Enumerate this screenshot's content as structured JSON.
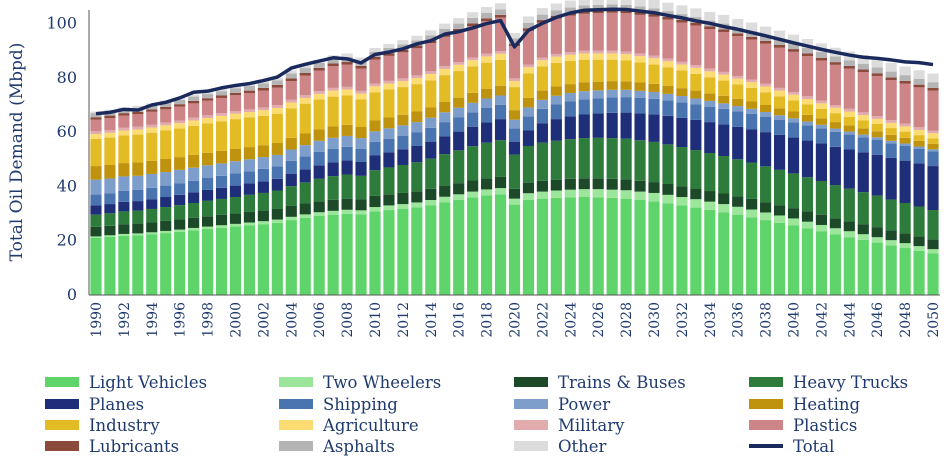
{
  "chart_data": {
    "type": "bar",
    "stacked": true,
    "ylabel": "Total Oil Demand (Mbpd)",
    "xlabel": "",
    "ylim": [
      0,
      105
    ],
    "yticks": [
      0,
      20,
      40,
      60,
      80,
      100
    ],
    "x": [
      1990,
      1991,
      1992,
      1993,
      1994,
      1995,
      1996,
      1997,
      1998,
      1999,
      2000,
      2001,
      2002,
      2003,
      2004,
      2005,
      2006,
      2007,
      2008,
      2009,
      2010,
      2011,
      2012,
      2013,
      2014,
      2015,
      2016,
      2017,
      2018,
      2019,
      2020,
      2021,
      2022,
      2023,
      2024,
      2025,
      2026,
      2027,
      2028,
      2029,
      2030,
      2031,
      2032,
      2033,
      2034,
      2035,
      2036,
      2037,
      2038,
      2039,
      2040,
      2041,
      2042,
      2043,
      2044,
      2045,
      2046,
      2047,
      2048,
      2049,
      2050
    ],
    "xtick_labels": [
      "1990",
      "1992",
      "1994",
      "1996",
      "1998",
      "2000",
      "2002",
      "2004",
      "2006",
      "2008",
      "2010",
      "2012",
      "2014",
      "2016",
      "2018",
      "2020",
      "2022",
      "2024",
      "2026",
      "2028",
      "2030",
      "2032",
      "2034",
      "2036",
      "2038",
      "2040",
      "2042",
      "2044",
      "2046",
      "2048",
      "2050"
    ],
    "series": [
      {
        "name": "Light Vehicles",
        "color": "#5fd46a",
        "values": [
          21.0,
          21.4,
          21.8,
          22.0,
          22.4,
          22.8,
          23.3,
          23.8,
          24.3,
          24.7,
          25.2,
          25.6,
          26.1,
          26.6,
          27.6,
          28.4,
          29.1,
          29.6,
          29.9,
          29.7,
          30.8,
          31.3,
          31.8,
          32.3,
          33.1,
          34.2,
          35.1,
          36.0,
          36.7,
          37.1,
          33.3,
          35.0,
          35.5,
          35.8,
          36.0,
          36.1,
          36.0,
          35.8,
          35.5,
          35.0,
          34.5,
          33.8,
          33.0,
          32.2,
          31.4,
          30.5,
          29.6,
          28.6,
          27.6,
          26.6,
          25.6,
          24.5,
          23.4,
          22.3,
          21.3,
          20.3,
          19.3,
          18.3,
          17.3,
          16.3,
          15.3
        ]
      },
      {
        "name": "Two Wheelers",
        "color": "#9be69a",
        "values": [
          0.6,
          0.6,
          0.7,
          0.7,
          0.7,
          0.8,
          0.8,
          0.9,
          0.9,
          1.0,
          1.0,
          1.1,
          1.1,
          1.2,
          1.2,
          1.3,
          1.4,
          1.4,
          1.5,
          1.5,
          1.6,
          1.7,
          1.7,
          1.8,
          1.9,
          2.0,
          2.0,
          2.1,
          2.2,
          2.3,
          2.2,
          2.5,
          2.6,
          2.7,
          2.8,
          2.9,
          3.0,
          3.0,
          3.1,
          3.1,
          3.1,
          3.1,
          3.1,
          3.1,
          3.0,
          3.0,
          2.9,
          2.9,
          2.8,
          2.7,
          2.6,
          2.5,
          2.4,
          2.3,
          2.2,
          2.1,
          2.0,
          1.9,
          1.8,
          1.7,
          1.6
        ]
      },
      {
        "name": "Trains & Buses",
        "color": "#1c4a28",
        "values": [
          3.5,
          3.5,
          3.6,
          3.6,
          3.6,
          3.7,
          3.7,
          3.7,
          3.8,
          3.8,
          3.8,
          3.9,
          3.9,
          3.9,
          4.0,
          4.0,
          4.0,
          4.1,
          4.1,
          4.0,
          4.1,
          4.1,
          4.1,
          4.1,
          4.1,
          4.1,
          4.1,
          4.1,
          4.1,
          4.1,
          3.6,
          3.9,
          4.0,
          4.0,
          4.0,
          4.0,
          4.0,
          4.0,
          4.0,
          4.0,
          4.0,
          4.0,
          4.0,
          3.9,
          3.9,
          3.9,
          3.9,
          3.9,
          3.8,
          3.8,
          3.8,
          3.8,
          3.8,
          3.7,
          3.7,
          3.7,
          3.7,
          3.6,
          3.6,
          3.6,
          3.6
        ]
      },
      {
        "name": "Heavy Trucks",
        "color": "#2e7c3c",
        "values": [
          4.5,
          4.6,
          4.7,
          4.8,
          5.0,
          5.1,
          5.3,
          5.5,
          5.7,
          5.9,
          6.1,
          6.3,
          6.5,
          6.8,
          7.3,
          7.8,
          8.3,
          8.7,
          8.9,
          8.7,
          9.5,
          9.9,
          10.3,
          10.7,
          11.1,
          11.6,
          12.1,
          12.6,
          13.1,
          13.5,
          12.6,
          13.5,
          14.0,
          14.3,
          14.6,
          14.8,
          14.9,
          15.0,
          15.0,
          14.9,
          14.8,
          14.6,
          14.4,
          14.2,
          14.0,
          13.8,
          13.6,
          13.4,
          13.2,
          13.0,
          12.8,
          12.6,
          12.4,
          12.2,
          12.0,
          11.8,
          11.6,
          11.4,
          11.2,
          11.0,
          10.8
        ]
      },
      {
        "name": "Planes",
        "color": "#1f2e78",
        "values": [
          3.4,
          3.4,
          3.5,
          3.5,
          3.6,
          3.7,
          3.8,
          3.9,
          4.0,
          4.1,
          4.2,
          4.2,
          4.3,
          4.3,
          4.6,
          4.8,
          5.0,
          5.1,
          5.2,
          5.1,
          5.4,
          5.6,
          5.8,
          6.0,
          6.3,
          6.6,
          6.9,
          7.2,
          7.5,
          7.8,
          4.8,
          5.7,
          7.2,
          8.0,
          8.4,
          8.7,
          9.0,
          9.3,
          9.6,
          9.9,
          10.2,
          10.5,
          10.8,
          11.1,
          11.4,
          11.7,
          12.0,
          12.3,
          12.6,
          12.9,
          13.2,
          13.5,
          13.8,
          14.1,
          14.4,
          14.7,
          15.0,
          15.3,
          15.6,
          15.9,
          16.2
        ]
      },
      {
        "name": "Shipping",
        "color": "#4a74b0",
        "values": [
          4.0,
          4.0,
          4.1,
          4.1,
          4.2,
          4.2,
          4.3,
          4.3,
          4.4,
          4.4,
          4.5,
          4.5,
          4.6,
          4.6,
          4.7,
          4.8,
          4.9,
          5.0,
          5.0,
          4.9,
          5.0,
          5.0,
          5.0,
          5.1,
          5.1,
          5.2,
          5.2,
          5.3,
          5.3,
          5.3,
          4.9,
          5.2,
          5.3,
          5.4,
          5.5,
          5.6,
          5.6,
          5.7,
          5.7,
          5.7,
          5.7,
          5.7,
          5.7,
          5.7,
          5.7,
          5.7,
          5.7,
          5.7,
          5.7,
          5.6,
          5.6,
          5.6,
          5.6,
          5.5,
          5.5,
          5.5,
          5.5,
          5.4,
          5.4,
          5.4,
          5.4
        ]
      },
      {
        "name": "Power",
        "color": "#7d9dcb",
        "values": [
          5.5,
          5.4,
          5.3,
          5.2,
          5.1,
          5.0,
          4.9,
          4.8,
          4.7,
          4.6,
          4.5,
          4.4,
          4.3,
          4.2,
          4.2,
          4.1,
          4.1,
          4.0,
          4.0,
          3.9,
          3.9,
          3.8,
          3.8,
          3.7,
          3.7,
          3.6,
          3.6,
          3.5,
          3.5,
          3.4,
          3.2,
          3.3,
          3.3,
          3.2,
          3.1,
          3.0,
          2.9,
          2.8,
          2.7,
          2.6,
          2.5,
          2.4,
          2.3,
          2.2,
          2.1,
          2.0,
          1.9,
          1.8,
          1.7,
          1.6,
          1.5,
          1.4,
          1.3,
          1.2,
          1.1,
          1.0,
          1.0,
          0.9,
          0.9,
          0.8,
          0.8
        ]
      },
      {
        "name": "Heating",
        "color": "#c0930e",
        "values": [
          5.0,
          5.0,
          4.9,
          4.9,
          4.8,
          4.8,
          4.7,
          4.7,
          4.6,
          4.6,
          4.5,
          4.5,
          4.4,
          4.4,
          4.3,
          4.3,
          4.2,
          4.2,
          4.1,
          4.1,
          4.0,
          4.0,
          3.9,
          3.9,
          3.8,
          3.8,
          3.7,
          3.7,
          3.6,
          3.6,
          3.5,
          3.5,
          3.4,
          3.4,
          3.3,
          3.3,
          3.2,
          3.2,
          3.1,
          3.1,
          3.0,
          3.0,
          2.9,
          2.9,
          2.8,
          2.8,
          2.7,
          2.7,
          2.6,
          2.6,
          2.5,
          2.5,
          2.4,
          2.4,
          2.3,
          2.3,
          2.2,
          2.2,
          2.1,
          2.1,
          2.0
        ]
      },
      {
        "name": "Industry",
        "color": "#e3bb24",
        "values": [
          10.0,
          10.1,
          10.2,
          10.3,
          10.4,
          10.5,
          10.6,
          10.7,
          10.8,
          10.9,
          11.0,
          10.9,
          10.8,
          10.8,
          10.9,
          11.0,
          11.0,
          11.0,
          10.8,
          10.2,
          10.4,
          10.3,
          10.2,
          10.1,
          10.0,
          9.9,
          9.8,
          9.7,
          9.6,
          9.5,
          8.5,
          9.0,
          8.9,
          8.7,
          8.5,
          8.3,
          8.1,
          7.9,
          7.7,
          7.4,
          7.1,
          6.8,
          6.5,
          6.2,
          5.9,
          5.6,
          5.3,
          5.0,
          4.7,
          4.4,
          4.1,
          3.8,
          3.5,
          3.3,
          3.1,
          2.9,
          2.7,
          2.5,
          2.3,
          2.1,
          2.0
        ]
      },
      {
        "name": "Agriculture",
        "color": "#fbdc72",
        "values": [
          1.8,
          1.8,
          1.8,
          1.9,
          1.9,
          1.9,
          1.9,
          2.0,
          2.0,
          2.0,
          2.0,
          2.0,
          2.1,
          2.1,
          2.1,
          2.1,
          2.1,
          2.2,
          2.2,
          2.1,
          2.2,
          2.2,
          2.2,
          2.2,
          2.3,
          2.3,
          2.3,
          2.3,
          2.3,
          2.3,
          2.2,
          2.3,
          2.3,
          2.3,
          2.3,
          2.3,
          2.3,
          2.3,
          2.3,
          2.3,
          2.3,
          2.2,
          2.2,
          2.2,
          2.2,
          2.2,
          2.1,
          2.1,
          2.1,
          2.1,
          2.1,
          2.0,
          2.0,
          2.0,
          2.0,
          2.0,
          1.9,
          1.9,
          1.9,
          1.9,
          1.9
        ]
      },
      {
        "name": "Military",
        "color": "#e2acae",
        "values": [
          1.0,
          1.0,
          1.0,
          1.0,
          1.0,
          1.0,
          1.0,
          1.0,
          1.0,
          1.0,
          1.0,
          1.0,
          1.0,
          1.0,
          1.0,
          1.0,
          1.0,
          1.0,
          1.0,
          1.0,
          1.0,
          1.0,
          1.0,
          1.0,
          1.0,
          1.0,
          1.0,
          1.0,
          1.0,
          1.0,
          1.0,
          1.0,
          1.0,
          1.0,
          1.0,
          1.0,
          1.0,
          1.0,
          1.0,
          1.0,
          1.0,
          1.0,
          1.0,
          1.0,
          1.0,
          1.0,
          1.0,
          1.0,
          1.0,
          1.0,
          1.0,
          1.0,
          1.0,
          1.0,
          1.0,
          1.0,
          1.0,
          1.0,
          1.0,
          1.0,
          1.0
        ]
      },
      {
        "name": "Plastics",
        "color": "#cd8587",
        "values": [
          4.3,
          4.4,
          4.5,
          4.6,
          4.8,
          4.9,
          5.1,
          5.3,
          5.4,
          5.6,
          5.8,
          6.0,
          6.2,
          6.5,
          6.9,
          7.2,
          7.6,
          8.0,
          8.2,
          8.2,
          8.8,
          9.2,
          9.6,
          10.0,
          10.4,
          10.8,
          11.2,
          11.6,
          12.0,
          12.3,
          11.9,
          12.4,
          12.8,
          13.1,
          13.4,
          13.6,
          13.8,
          14.0,
          14.1,
          14.2,
          14.3,
          14.4,
          14.5,
          14.6,
          14.6,
          14.7,
          14.7,
          14.7,
          14.8,
          14.8,
          14.8,
          14.8,
          14.8,
          14.8,
          14.8,
          14.8,
          14.8,
          14.8,
          14.8,
          14.7,
          14.7
        ]
      },
      {
        "name": "Lubricants",
        "color": "#8b4a3c",
        "values": [
          0.9,
          0.9,
          0.9,
          0.9,
          0.9,
          0.9,
          0.9,
          0.9,
          0.9,
          0.9,
          0.9,
          0.9,
          1.0,
          1.0,
          1.0,
          1.0,
          1.0,
          1.0,
          1.0,
          1.0,
          1.0,
          1.0,
          1.0,
          1.0,
          1.0,
          1.0,
          1.0,
          1.0,
          1.0,
          1.0,
          0.9,
          1.0,
          1.0,
          1.0,
          1.0,
          1.0,
          1.0,
          1.0,
          1.0,
          1.0,
          1.0,
          1.0,
          1.0,
          1.0,
          1.0,
          1.0,
          1.0,
          1.0,
          1.0,
          1.0,
          1.0,
          1.0,
          1.0,
          1.0,
          1.0,
          1.0,
          1.0,
          1.0,
          1.0,
          1.0,
          1.0
        ]
      },
      {
        "name": "Asphalts",
        "color": "#b4b4b4",
        "values": [
          1.5,
          1.5,
          1.5,
          1.5,
          1.5,
          1.6,
          1.6,
          1.6,
          1.6,
          1.6,
          1.7,
          1.7,
          1.7,
          1.7,
          1.8,
          1.8,
          1.8,
          1.8,
          1.8,
          1.8,
          1.9,
          1.9,
          1.9,
          1.9,
          1.9,
          2.0,
          2.0,
          2.0,
          2.0,
          2.0,
          1.9,
          2.0,
          2.0,
          2.0,
          2.0,
          2.1,
          2.1,
          2.1,
          2.1,
          2.1,
          2.1,
          2.1,
          2.1,
          2.1,
          2.1,
          2.1,
          2.1,
          2.1,
          2.1,
          2.1,
          2.1,
          2.1,
          2.1,
          2.1,
          2.1,
          2.1,
          2.1,
          2.1,
          2.1,
          2.1,
          2.1
        ]
      },
      {
        "name": "Other",
        "color": "#dcdcdc",
        "values": [
          0.6,
          0.6,
          0.6,
          0.7,
          0.7,
          0.7,
          0.8,
          0.8,
          0.8,
          0.9,
          0.9,
          0.9,
          1.0,
          1.0,
          1.1,
          1.1,
          1.2,
          1.2,
          1.3,
          1.3,
          1.4,
          1.5,
          1.6,
          1.7,
          1.8,
          1.9,
          2.0,
          2.1,
          2.2,
          2.3,
          2.0,
          2.3,
          2.4,
          2.5,
          2.6,
          2.7,
          2.8,
          2.9,
          3.0,
          3.0,
          3.1,
          3.1,
          3.2,
          3.2,
          3.2,
          3.2,
          3.2,
          3.2,
          3.2,
          3.2,
          3.2,
          3.2,
          3.2,
          3.2,
          3.2,
          3.2,
          3.2,
          3.2,
          3.2,
          3.2,
          3.2
        ]
      }
    ],
    "total": {
      "name": "Total",
      "color": "#1b2a5c",
      "values": [
        66.8,
        67.3,
        68.4,
        68.1,
        70.0,
        71.0,
        72.6,
        74.7,
        75.1,
        76.3,
        77.2,
        77.9,
        79.0,
        80.3,
        83.6,
        85.0,
        86.2,
        87.4,
        87.0,
        85.5,
        88.6,
        89.5,
        90.7,
        92.5,
        93.7,
        96.1,
        97.0,
        98.4,
        100.0,
        101.1,
        91.4,
        97.5,
        100.1,
        102.3,
        103.9,
        104.9,
        105.1,
        105.3,
        105.2,
        104.6,
        104.0,
        103.0,
        102.1,
        101.0,
        100.1,
        98.9,
        97.9,
        96.7,
        95.5,
        94.2,
        92.9,
        91.7,
        90.5,
        89.4,
        88.4,
        87.6,
        87.2,
        86.6,
        85.9,
        85.6,
        84.9
      ]
    },
    "legend_position": "bottom"
  }
}
